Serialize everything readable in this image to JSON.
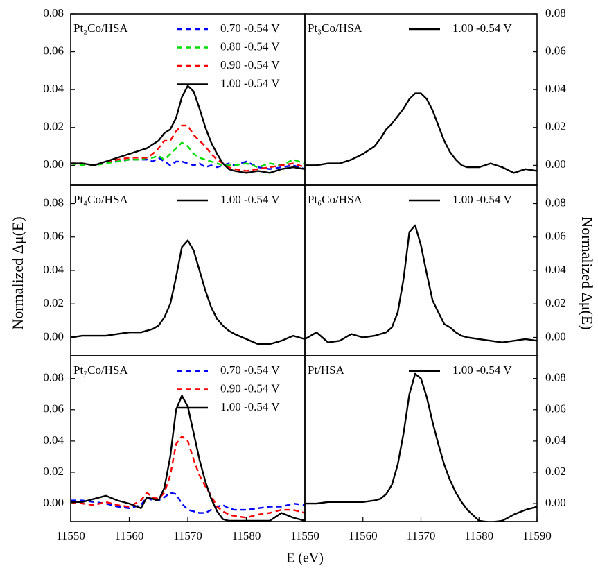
{
  "figure": {
    "xlabel": "E (eV)",
    "ylabel": "Normalized Δμ(E)"
  },
  "chart_data": [
    {
      "type": "line",
      "title": "Pt₂Co/HSA",
      "yaxis_side": "left",
      "legend": "upper right",
      "xlim": [
        11550,
        11590
      ],
      "ylim": [
        -0.0105,
        0.08
      ],
      "yticks": [
        {
          "value": 0,
          "label": "0.00"
        },
        {
          "value": 0.02,
          "label": "0.02"
        },
        {
          "value": 0.04,
          "label": "0.04"
        },
        {
          "value": 0.06,
          "label": "0.06"
        },
        {
          "value": 0.08,
          "label": "0.08"
        }
      ],
      "x": [
        11550,
        11552,
        11554,
        11556,
        11558,
        11560,
        11562,
        11563,
        11564,
        11565,
        11566,
        11567,
        11568,
        11569,
        11570,
        11571,
        11572,
        11573,
        11574,
        11575,
        11576,
        11577,
        11578,
        11580,
        11582,
        11584,
        11586,
        11588,
        11590
      ],
      "series": [
        {
          "name": "0.70 -0.54 V",
          "color": "#0000ff",
          "style": "dashed",
          "values": [
            0.001,
            0.001,
            0.0,
            0.002,
            0.002,
            0.003,
            0.003,
            0.003,
            0.002,
            0.004,
            0.002,
            0.0,
            0.002,
            0.002,
            0.001,
            0.0,
            0.001,
            -0.001,
            0.0,
            -0.001,
            0.0,
            0.001,
            0.0,
            0.002,
            -0.001,
            -0.002,
            -0.001,
            0.0,
            -0.002
          ]
        },
        {
          "name": "0.80 -0.54 V",
          "color": "#00dd00",
          "style": "dashed",
          "values": [
            0.001,
            0.0,
            0.0,
            0.001,
            0.002,
            0.003,
            0.003,
            0.004,
            0.004,
            0.005,
            0.003,
            0.006,
            0.009,
            0.012,
            0.01,
            0.006,
            0.004,
            0.003,
            0.002,
            0.001,
            0.0,
            0.0,
            0.0,
            0.001,
            -0.001,
            0.001,
            0.0,
            0.003,
            0.001
          ]
        },
        {
          "name": "0.90 -0.54 V",
          "color": "#ff0000",
          "style": "dashed",
          "values": [
            0.001,
            0.001,
            0.0,
            0.002,
            0.003,
            0.004,
            0.004,
            0.004,
            0.006,
            0.009,
            0.013,
            0.013,
            0.018,
            0.021,
            0.021,
            0.016,
            0.013,
            0.01,
            0.006,
            0.003,
            0.001,
            -0.001,
            -0.002,
            -0.003,
            -0.002,
            -0.001,
            0.0,
            0.001,
            -0.001
          ]
        },
        {
          "name": "1.00 -0.54 V",
          "color": "#000000",
          "style": "solid",
          "values": [
            0.001,
            0.001,
            0.0,
            0.002,
            0.004,
            0.006,
            0.008,
            0.009,
            0.011,
            0.013,
            0.017,
            0.019,
            0.025,
            0.036,
            0.042,
            0.039,
            0.03,
            0.02,
            0.012,
            0.006,
            0.001,
            -0.002,
            -0.003,
            -0.004,
            -0.003,
            -0.004,
            -0.002,
            -0.001,
            -0.002
          ]
        }
      ]
    },
    {
      "type": "line",
      "title": "Pt₃Co/HSA",
      "yaxis_side": "right",
      "legend": "upper right",
      "xlim": [
        11550,
        11590
      ],
      "ylim": [
        -0.0105,
        0.08
      ],
      "yticks": [
        {
          "value": 0,
          "label": "0.00"
        },
        {
          "value": 0.02,
          "label": "0.02"
        },
        {
          "value": 0.04,
          "label": "0.04"
        },
        {
          "value": 0.06,
          "label": "0.06"
        },
        {
          "value": 0.08,
          "label": "0.08"
        }
      ],
      "x": [
        11550,
        11552,
        11554,
        11556,
        11558,
        11560,
        11562,
        11563,
        11564,
        11565,
        11566,
        11567,
        11568,
        11569,
        11570,
        11571,
        11572,
        11573,
        11574,
        11575,
        11576,
        11577,
        11578,
        11580,
        11582,
        11584,
        11586,
        11588,
        11590
      ],
      "series": [
        {
          "name": "1.00 -0.54 V",
          "color": "#000000",
          "style": "solid",
          "values": [
            0.0,
            0.0,
            0.001,
            0.001,
            0.003,
            0.006,
            0.01,
            0.014,
            0.019,
            0.022,
            0.026,
            0.03,
            0.035,
            0.038,
            0.038,
            0.035,
            0.029,
            0.021,
            0.013,
            0.007,
            0.003,
            0.0,
            -0.001,
            -0.001,
            0.001,
            -0.001,
            -0.004,
            -0.002,
            -0.003
          ]
        }
      ]
    },
    {
      "type": "line",
      "title": "Pt₄Co/HSA",
      "yaxis_side": "left",
      "legend": "upper right",
      "xlim": [
        11550,
        11590
      ],
      "ylim": [
        -0.011,
        0.091
      ],
      "yticks": [
        {
          "value": 0,
          "label": "0.00"
        },
        {
          "value": 0.02,
          "label": "0.02"
        },
        {
          "value": 0.04,
          "label": "0.04"
        },
        {
          "value": 0.06,
          "label": "0.06"
        },
        {
          "value": 0.08,
          "label": "0.08"
        }
      ],
      "x": [
        11550,
        11552,
        11554,
        11556,
        11558,
        11560,
        11562,
        11563,
        11564,
        11565,
        11566,
        11567,
        11568,
        11569,
        11570,
        11571,
        11572,
        11573,
        11574,
        11575,
        11576,
        11577,
        11578,
        11580,
        11582,
        11584,
        11586,
        11588,
        11590
      ],
      "series": [
        {
          "name": "1.00 -0.54 V",
          "color": "#000000",
          "style": "solid",
          "values": [
            0.0,
            0.001,
            0.001,
            0.001,
            0.002,
            0.003,
            0.003,
            0.004,
            0.005,
            0.007,
            0.012,
            0.02,
            0.036,
            0.054,
            0.058,
            0.052,
            0.04,
            0.028,
            0.018,
            0.011,
            0.007,
            0.004,
            0.002,
            -0.001,
            -0.004,
            -0.004,
            -0.002,
            0.001,
            -0.001
          ]
        }
      ]
    },
    {
      "type": "line",
      "title": "Pt₆Co/HSA",
      "yaxis_side": "right",
      "legend": "upper right",
      "xlim": [
        11550,
        11590
      ],
      "ylim": [
        -0.011,
        0.091
      ],
      "yticks": [
        {
          "value": 0,
          "label": "0.00"
        },
        {
          "value": 0.02,
          "label": "0.02"
        },
        {
          "value": 0.04,
          "label": "0.04"
        },
        {
          "value": 0.06,
          "label": "0.06"
        },
        {
          "value": 0.08,
          "label": "0.08"
        }
      ],
      "x": [
        11550,
        11552,
        11554,
        11556,
        11558,
        11560,
        11562,
        11563,
        11564,
        11565,
        11566,
        11567,
        11568,
        11569,
        11570,
        11571,
        11572,
        11573,
        11574,
        11575,
        11576,
        11577,
        11578,
        11580,
        11582,
        11584,
        11586,
        11588,
        11590
      ],
      "series": [
        {
          "name": "1.00 -0.54 V",
          "color": "#000000",
          "style": "solid",
          "values": [
            -0.001,
            0.003,
            -0.003,
            -0.002,
            0.002,
            0.0,
            0.001,
            0.002,
            0.003,
            0.006,
            0.015,
            0.035,
            0.063,
            0.067,
            0.055,
            0.038,
            0.022,
            0.015,
            0.008,
            0.006,
            0.003,
            0.001,
            0.0,
            -0.001,
            -0.002,
            -0.003,
            -0.002,
            -0.001,
            -0.002
          ]
        }
      ]
    },
    {
      "type": "line",
      "title": "Pt₇Co/HSA",
      "yaxis_side": "left",
      "legend": "upper right",
      "xlim": [
        11550,
        11590
      ],
      "ylim": [
        -0.0115,
        0.0945
      ],
      "xticks": [
        11550,
        11560,
        11570,
        11580
      ],
      "yticks": [
        {
          "value": 0,
          "label": "0.00"
        },
        {
          "value": 0.02,
          "label": "0.02"
        },
        {
          "value": 0.04,
          "label": "0.04"
        },
        {
          "value": 0.06,
          "label": "0.06"
        },
        {
          "value": 0.08,
          "label": "0.08"
        }
      ],
      "x": [
        11550,
        11552,
        11554,
        11556,
        11558,
        11560,
        11562,
        11563,
        11564,
        11565,
        11566,
        11567,
        11568,
        11569,
        11570,
        11571,
        11572,
        11573,
        11574,
        11575,
        11576,
        11577,
        11578,
        11580,
        11582,
        11584,
        11586,
        11588,
        11590
      ],
      "series": [
        {
          "name": "0.70 -0.54 V",
          "color": "#0000ff",
          "style": "dashed",
          "values": [
            0.002,
            0.002,
            0.001,
            0.0,
            -0.002,
            -0.003,
            -0.001,
            0.004,
            0.002,
            0.002,
            0.004,
            0.007,
            0.006,
            0.0,
            -0.004,
            -0.005,
            -0.006,
            -0.006,
            -0.004,
            -0.002,
            -0.001,
            -0.003,
            -0.004,
            -0.004,
            -0.003,
            -0.002,
            -0.002,
            0.0,
            -0.001
          ]
        },
        {
          "name": "0.90 -0.54 V",
          "color": "#ff0000",
          "style": "dashed",
          "values": [
            0.001,
            0.0,
            -0.001,
            0.001,
            -0.001,
            -0.002,
            0.002,
            0.007,
            0.004,
            0.003,
            0.007,
            0.018,
            0.038,
            0.043,
            0.04,
            0.028,
            0.018,
            0.011,
            0.005,
            -0.002,
            -0.005,
            -0.007,
            -0.008,
            -0.009,
            -0.007,
            -0.006,
            -0.004,
            -0.004,
            -0.006
          ]
        },
        {
          "name": "1.00 -0.54 V",
          "color": "#000000",
          "style": "solid",
          "values": [
            0.001,
            0.001,
            0.003,
            0.005,
            0.002,
            0.0,
            -0.003,
            0.004,
            0.003,
            0.002,
            0.01,
            0.03,
            0.06,
            0.069,
            0.062,
            0.045,
            0.028,
            0.014,
            0.003,
            -0.005,
            -0.01,
            -0.011,
            -0.011,
            -0.011,
            -0.011,
            -0.011,
            -0.006,
            -0.009,
            -0.011
          ]
        }
      ]
    },
    {
      "type": "line",
      "title": "Pt/HSA",
      "yaxis_side": "right",
      "legend": "upper right",
      "xlim": [
        11550,
        11590
      ],
      "ylim": [
        -0.0115,
        0.0945
      ],
      "xticks": [
        11550,
        11560,
        11570,
        11580,
        11590
      ],
      "yticks": [
        {
          "value": 0,
          "label": "0.00"
        },
        {
          "value": 0.02,
          "label": "0.02"
        },
        {
          "value": 0.04,
          "label": "0.04"
        },
        {
          "value": 0.06,
          "label": "0.06"
        },
        {
          "value": 0.08,
          "label": "0.08"
        }
      ],
      "x": [
        11550,
        11552,
        11554,
        11556,
        11558,
        11560,
        11562,
        11563,
        11564,
        11565,
        11566,
        11567,
        11568,
        11569,
        11570,
        11571,
        11572,
        11573,
        11574,
        11575,
        11576,
        11577,
        11578,
        11580,
        11582,
        11584,
        11586,
        11588,
        11590
      ],
      "series": [
        {
          "name": "1.00 -0.54 V",
          "color": "#000000",
          "style": "solid",
          "values": [
            0.0,
            0.0,
            0.001,
            0.001,
            0.001,
            0.001,
            0.002,
            0.003,
            0.006,
            0.012,
            0.025,
            0.045,
            0.07,
            0.083,
            0.08,
            0.068,
            0.052,
            0.038,
            0.025,
            0.015,
            0.007,
            0.001,
            -0.004,
            -0.011,
            -0.012,
            -0.011,
            -0.007,
            -0.004,
            -0.002
          ]
        }
      ]
    }
  ]
}
